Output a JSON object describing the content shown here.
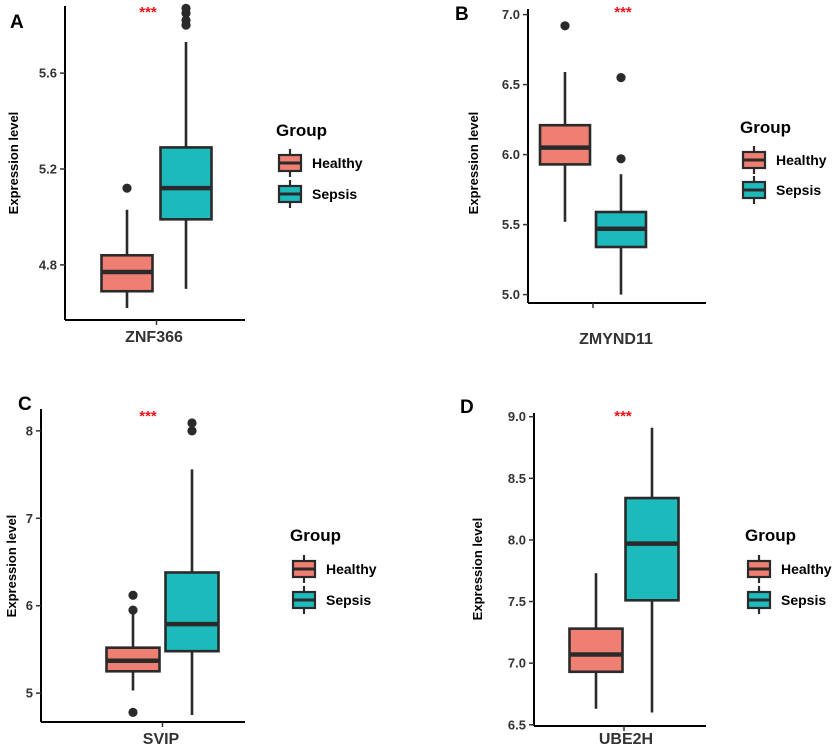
{
  "figure": {
    "legend_title": "Group",
    "groups": [
      "Healthy",
      "Sepsis"
    ],
    "colors": {
      "Healthy": "#F07F73",
      "Sepsis": "#1DBABC",
      "outline": "#2a2a2a",
      "significance": "#E8141C"
    }
  },
  "chart_data": [
    {
      "panel": "A",
      "type": "box",
      "category": "ZNF366",
      "ylabel": "Expression level",
      "significance": "***",
      "ylim": [
        4.57,
        5.88
      ],
      "yticks": [
        4.8,
        5.2,
        5.6
      ],
      "tick_labels": [
        "4.8",
        "5.2",
        "5.6"
      ],
      "boxes": [
        {
          "group": "Healthy",
          "whisker_low": 4.62,
          "q1": 4.69,
          "median": 4.77,
          "q3": 4.84,
          "whisker_high": 5.03,
          "outliers": [
            5.12
          ]
        },
        {
          "group": "Sepsis",
          "whisker_low": 4.7,
          "q1": 4.99,
          "median": 5.12,
          "q3": 5.29,
          "whisker_high": 5.73,
          "outliers": [
            5.8,
            5.82,
            5.85,
            5.87
          ]
        }
      ]
    },
    {
      "panel": "B",
      "type": "box",
      "category": "ZMYND11",
      "ylabel": "Expression level",
      "significance": "***",
      "ylim": [
        4.94,
        7.04
      ],
      "yticks": [
        5.0,
        5.5,
        6.0,
        6.5,
        7.0
      ],
      "tick_labels": [
        "5.0",
        "5.5",
        "6.0",
        "6.5",
        "7.0"
      ],
      "boxes": [
        {
          "group": "Healthy",
          "whisker_low": 5.52,
          "q1": 5.93,
          "median": 6.05,
          "q3": 6.21,
          "whisker_high": 6.59,
          "outliers": [
            6.92
          ]
        },
        {
          "group": "Sepsis",
          "whisker_low": 5.0,
          "q1": 5.34,
          "median": 5.47,
          "q3": 5.59,
          "whisker_high": 5.86,
          "outliers": [
            5.97,
            6.55
          ]
        }
      ]
    },
    {
      "panel": "C",
      "type": "box",
      "category": "SVIP",
      "ylabel": "Expression level",
      "significance": "***",
      "ylim": [
        4.67,
        8.25
      ],
      "yticks": [
        5,
        6,
        7,
        8
      ],
      "tick_labels": [
        "5",
        "6",
        "7",
        "8"
      ],
      "boxes": [
        {
          "group": "Healthy",
          "whisker_low": 5.03,
          "q1": 5.25,
          "median": 5.37,
          "q3": 5.52,
          "whisker_high": 5.9,
          "outliers": [
            4.78,
            5.95,
            6.12
          ]
        },
        {
          "group": "Sepsis",
          "whisker_low": 4.75,
          "q1": 5.48,
          "median": 5.79,
          "q3": 6.38,
          "whisker_high": 7.56,
          "outliers": [
            8.0,
            8.09
          ]
        }
      ]
    },
    {
      "panel": "D",
      "type": "box",
      "category": "UBE2H",
      "ylabel": "Expression level",
      "significance": "***",
      "ylim": [
        6.49,
        9.03
      ],
      "yticks": [
        6.5,
        7.0,
        7.5,
        8.0,
        8.5,
        9.0
      ],
      "tick_labels": [
        "6.5",
        "7.0",
        "7.5",
        "8.0",
        "8.5",
        "9.0"
      ],
      "boxes": [
        {
          "group": "Healthy",
          "whisker_low": 6.63,
          "q1": 6.93,
          "median": 7.07,
          "q3": 7.28,
          "whisker_high": 7.73,
          "outliers": []
        },
        {
          "group": "Sepsis",
          "whisker_low": 6.6,
          "q1": 7.51,
          "median": 7.97,
          "q3": 8.34,
          "whisker_high": 8.91,
          "outliers": []
        }
      ]
    }
  ]
}
